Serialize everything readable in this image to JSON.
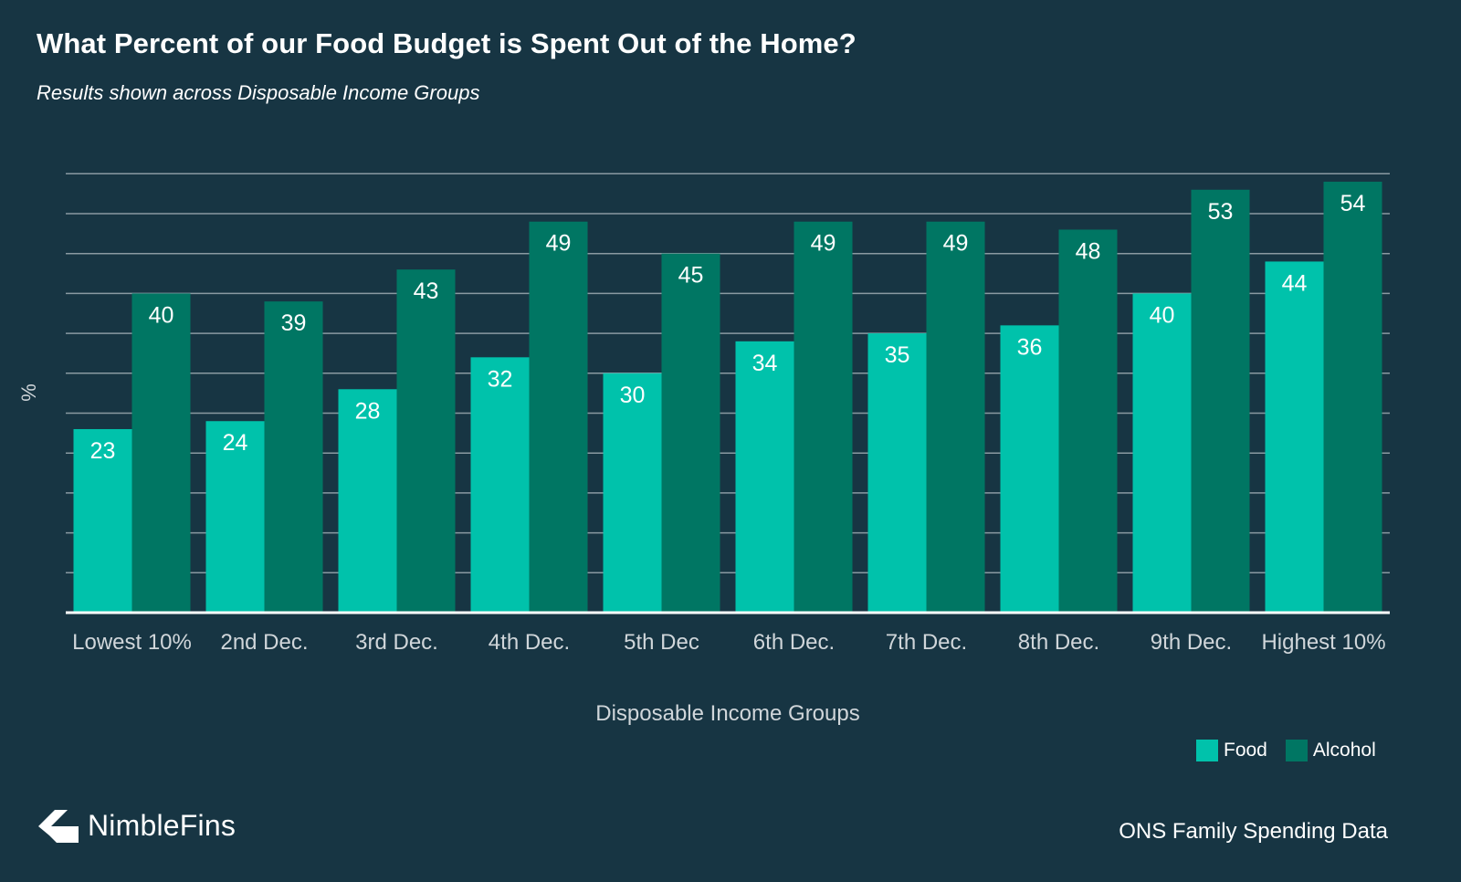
{
  "title": "What Percent of our Food Budget is Spent Out of the Home?",
  "subtitle": "Results shown across Disposable Income Groups",
  "brand": {
    "name": "NimbleFins",
    "logo_icon": "nimblefins-chevron-logo"
  },
  "source": "ONS Family Spending Data",
  "colors": {
    "background": "#173543",
    "food": "#00c2ab",
    "alcohol": "#007663",
    "gridline": "#8a9aa2",
    "axis": "#ffffff",
    "text": "#ffffff",
    "axis_label_text": "#d0d6da"
  },
  "chart_data": {
    "type": "bar",
    "title": "What Percent of our Food Budget is Spent Out of the Home?",
    "subtitle": "Results shown across Disposable Income Groups",
    "xlabel": "Disposable Income Groups",
    "ylabel": "%",
    "ylim": [
      0,
      55
    ],
    "ytick_step": 5,
    "y_tick_labels_shown": false,
    "grid": true,
    "legend_position": "bottom-right",
    "data_labels": true,
    "categories": [
      "Lowest 10%",
      "2nd Dec.",
      "3rd Dec.",
      "4th Dec.",
      "5th Dec",
      "6th Dec.",
      "7th Dec.",
      "8th Dec.",
      "9th Dec.",
      "Highest 10%"
    ],
    "series": [
      {
        "name": "Food",
        "values": [
          23,
          24,
          28,
          32,
          30,
          34,
          35,
          36,
          40,
          44
        ]
      },
      {
        "name": "Alcohol",
        "values": [
          40,
          39,
          43,
          49,
          45,
          49,
          49,
          48,
          53,
          54
        ]
      }
    ]
  }
}
